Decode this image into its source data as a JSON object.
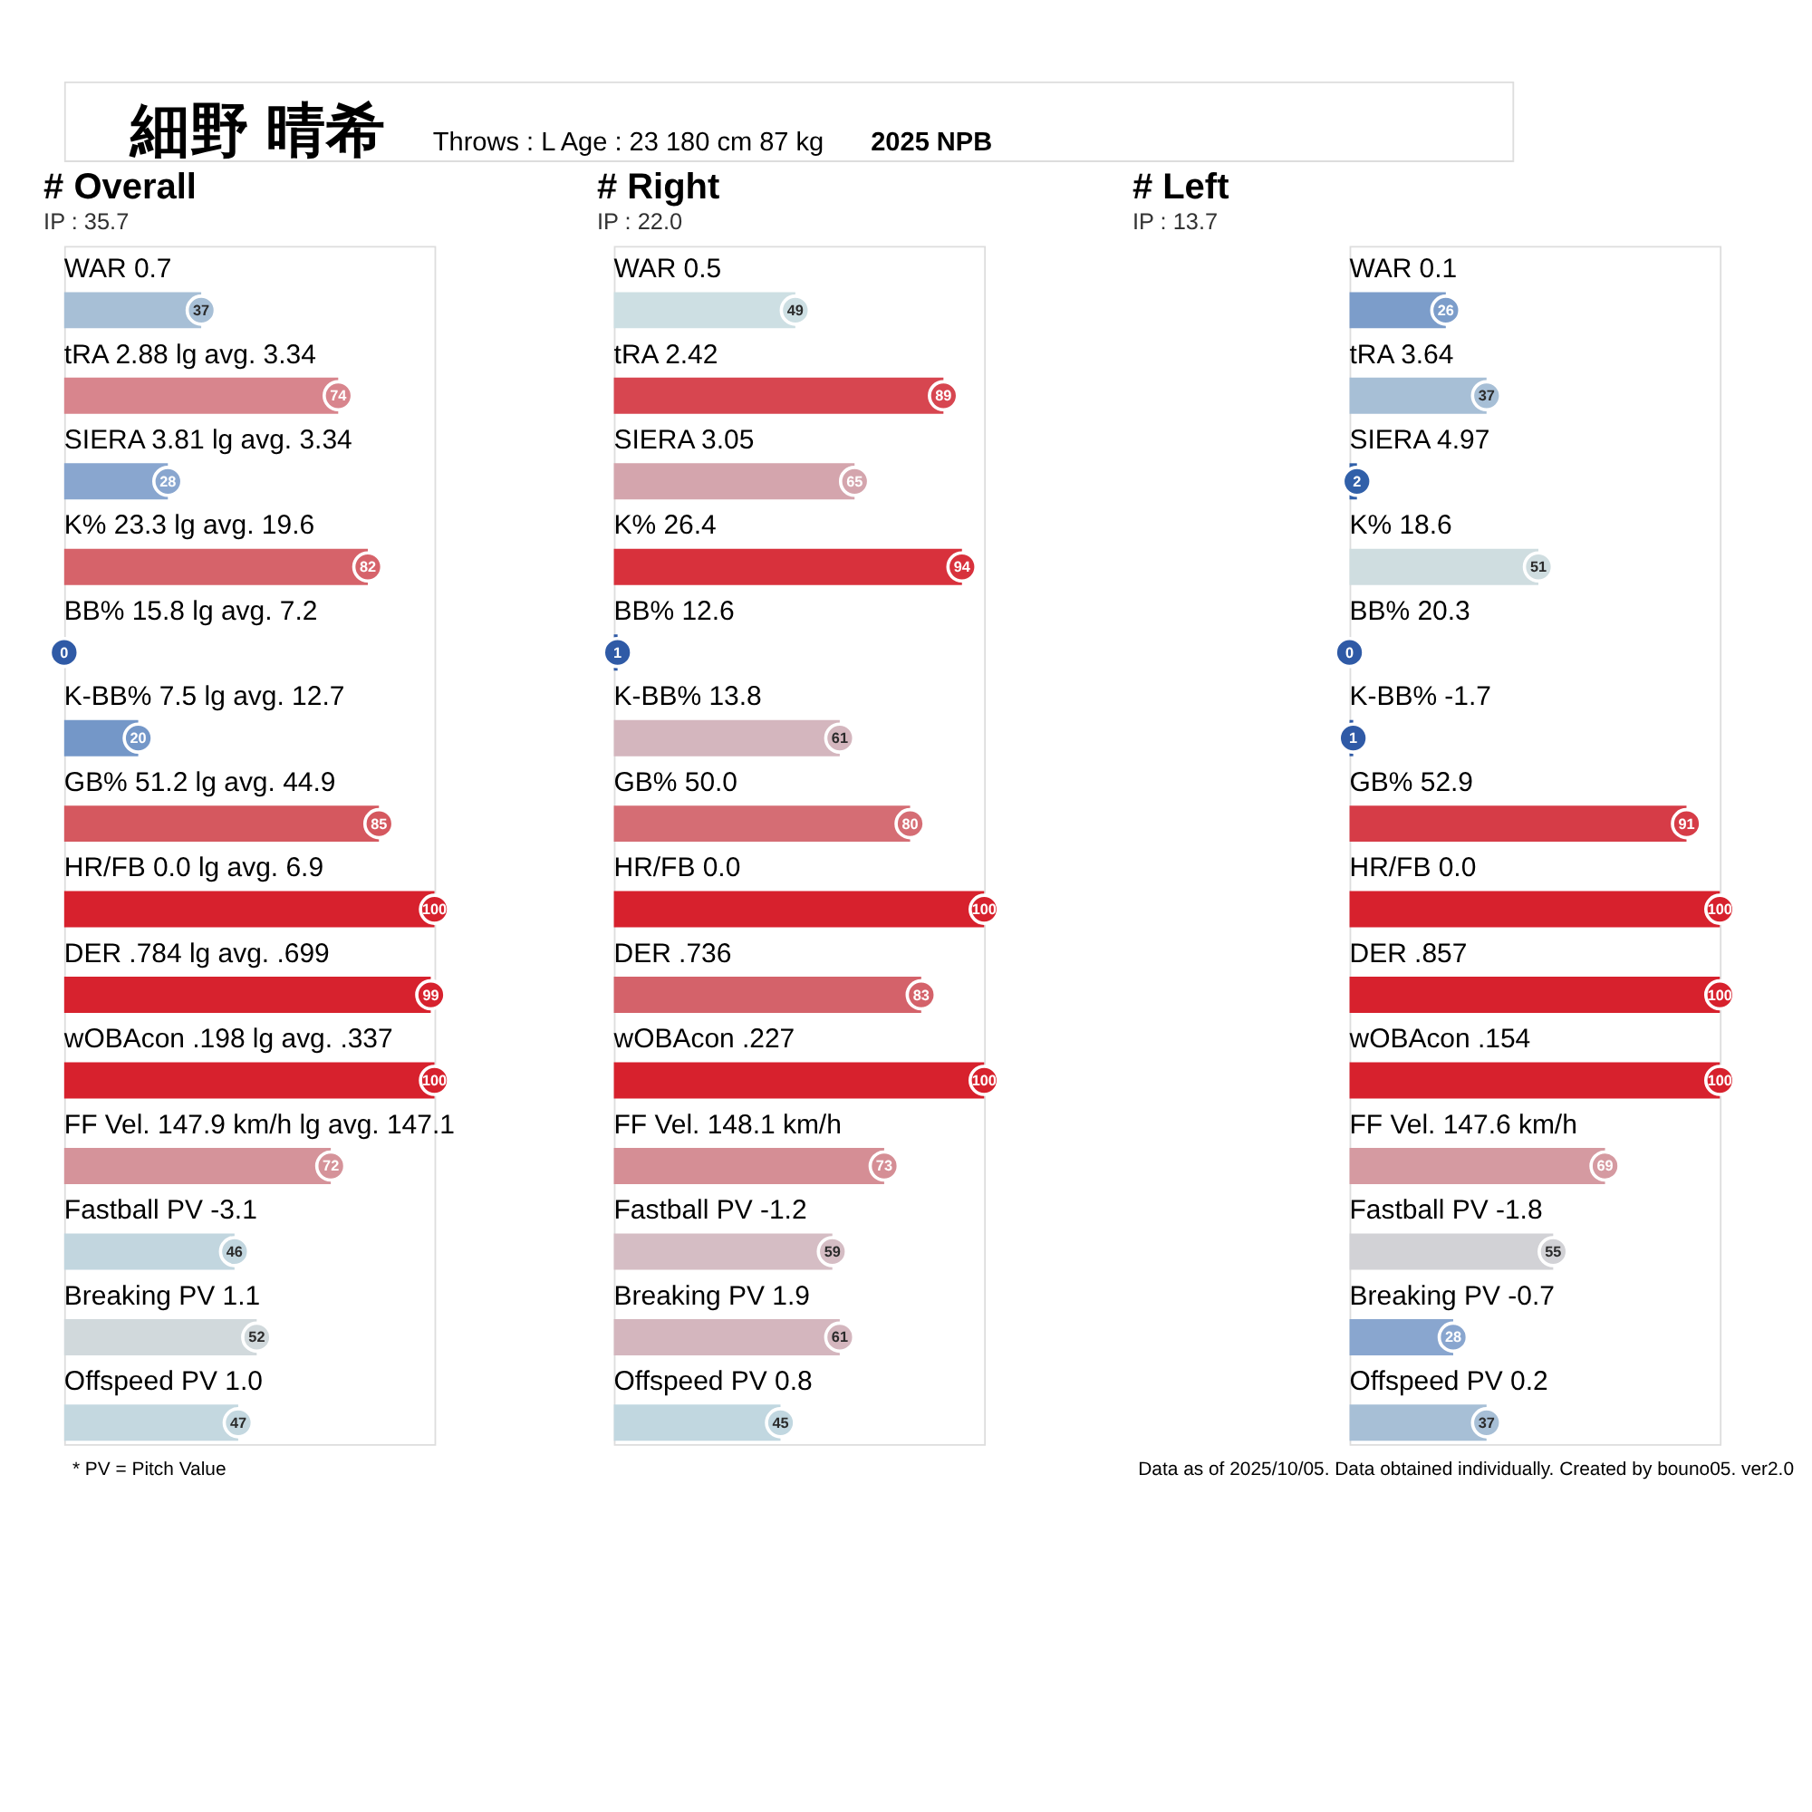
{
  "chart_data": [
    {
      "type": "other",
      "title": "細野  晴希",
      "subtitle": "Throws : L  Age : 23  180 cm 87 kg",
      "annotations": [
        "2025 NPB"
      ]
    },
    {
      "type": "bar",
      "orientation": "horizontal",
      "title": "# Overall",
      "subtitle": "IP : 35.7",
      "data_labels": true,
      "categories": [
        "WAR  0.7",
        "tRA  2.88  lg avg. 3.34",
        "SIERA  3.81  lg avg. 3.34",
        "K%  23.3  lg avg. 19.6",
        "BB%  15.8  lg avg. 7.2",
        "K-BB%  7.5  lg avg. 12.7",
        "GB%  51.2  lg avg. 44.9",
        "HR/FB  0.0  lg avg. 6.9",
        "DER  .784  lg avg. .699",
        "wOBAcon  .198  lg avg. .337",
        "FF Vel.  147.9 km/h  lg avg. 147.1",
        "Fastball PV  -3.1",
        "Breaking PV  1.1",
        "Offspeed PV  1.0"
      ],
      "values": [
        37,
        74,
        28,
        82,
        0,
        20,
        85,
        100,
        99,
        100,
        72,
        46,
        52,
        47
      ],
      "colors": [
        "#a7bfd6",
        "#d8858d",
        "#89a6cf",
        "#d6636a",
        "#2f5aa6",
        "#7497c8",
        "#d5585f",
        "#d7212d",
        "#d7222e",
        "#d7212d",
        "#d5939a",
        "#c2d6df",
        "#d1d9dc",
        "#c4d8e0"
      ],
      "annotations": [
        "* PV = Pitch Value"
      ]
    },
    {
      "type": "bar",
      "orientation": "horizontal",
      "title": "# Right",
      "subtitle": "IP : 22.0",
      "data_labels": true,
      "categories": [
        "WAR  0.5",
        "tRA  2.42",
        "SIERA  3.05",
        "K%  26.4",
        "BB%  12.6",
        "K-BB%  13.8",
        "GB%  50.0",
        "HR/FB  0.0",
        "DER  .736",
        "wOBAcon  .227",
        "FF Vel.  148.1 km/h",
        "Fastball PV  -1.2",
        "Breaking PV  1.9",
        "Offspeed PV  0.8"
      ],
      "values": [
        49,
        89,
        65,
        94,
        1,
        61,
        80,
        100,
        83,
        100,
        73,
        59,
        61,
        45
      ],
      "colors": [
        "#cddfe3",
        "#d74650",
        "#d4a5ad",
        "#d8313c",
        "#2f5aa6",
        "#d4b6be",
        "#d56d74",
        "#d7212d",
        "#d4626a",
        "#d7212d",
        "#d58e95",
        "#d5bdc4",
        "#d4b6be",
        "#c1d7e0"
      ]
    },
    {
      "type": "bar",
      "orientation": "horizontal",
      "title": "# Left",
      "subtitle": "IP : 13.7",
      "data_labels": true,
      "categories": [
        "WAR  0.1",
        "tRA  3.64",
        "SIERA  4.97",
        "K%  18.6",
        "BB%  20.3",
        "K-BB%  -1.7",
        "GB%  52.9",
        "HR/FB  0.0",
        "DER  .857",
        "wOBAcon  .154",
        "FF Vel.  147.6 km/h",
        "Fastball PV  -1.8",
        "Breaking PV  -0.7",
        "Offspeed PV  0.2"
      ],
      "values": [
        26,
        37,
        2,
        51,
        0,
        1,
        91,
        100,
        100,
        100,
        69,
        55,
        28,
        37
      ],
      "colors": [
        "#7c9dca",
        "#a7bfd6",
        "#3160a9",
        "#cfdde0",
        "#2f5aa6",
        "#2f5aa6",
        "#d63c47",
        "#d7212d",
        "#d7212d",
        "#d7212d",
        "#d59aa1",
        "#d2d2d6",
        "#89a6cf",
        "#a7bfd6"
      ],
      "annotations": [
        "Data as of 2025/10/05. Data obtained individually. Created by bouno05.  ver2.0"
      ]
    }
  ]
}
